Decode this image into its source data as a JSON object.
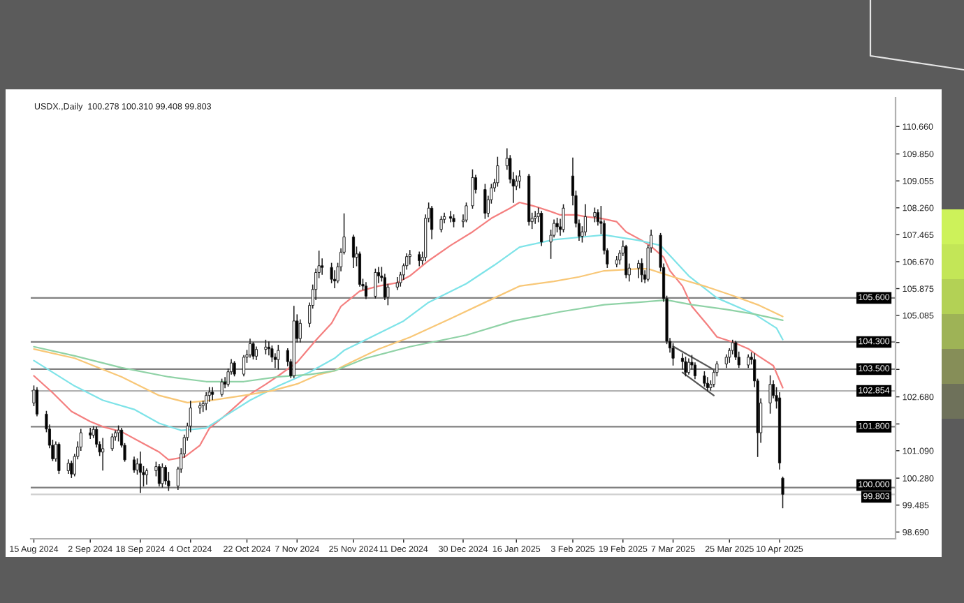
{
  "chart_data": {
    "type": "candlestick",
    "title": "USDX.,Daily  100.278 100.310 99.408 99.803",
    "x": [
      "2024-08-15",
      "2024-08-16",
      "2024-08-19",
      "2024-08-20",
      "2024-08-21",
      "2024-08-22",
      "2024-08-23",
      "2024-08-26",
      "2024-08-27",
      "2024-08-28",
      "2024-08-29",
      "2024-08-30",
      "2024-09-02",
      "2024-09-03",
      "2024-09-04",
      "2024-09-05",
      "2024-09-06",
      "2024-09-09",
      "2024-09-10",
      "2024-09-11",
      "2024-09-12",
      "2024-09-13",
      "2024-09-16",
      "2024-09-17",
      "2024-09-18",
      "2024-09-19",
      "2024-09-20",
      "2024-09-23",
      "2024-09-24",
      "2024-09-25",
      "2024-09-26",
      "2024-09-27",
      "2024-09-30",
      "2024-10-01",
      "2024-10-02",
      "2024-10-03",
      "2024-10-04",
      "2024-10-07",
      "2024-10-08",
      "2024-10-09",
      "2024-10-10",
      "2024-10-11",
      "2024-10-14",
      "2024-10-15",
      "2024-10-16",
      "2024-10-17",
      "2024-10-18",
      "2024-10-21",
      "2024-10-22",
      "2024-10-23",
      "2024-10-24",
      "2024-10-25",
      "2024-10-28",
      "2024-10-29",
      "2024-10-30",
      "2024-10-31",
      "2024-11-01",
      "2024-11-04",
      "2024-11-05",
      "2024-11-06",
      "2024-11-07",
      "2024-11-08",
      "2024-11-11",
      "2024-11-12",
      "2024-11-13",
      "2024-11-14",
      "2024-11-15",
      "2024-11-18",
      "2024-11-19",
      "2024-11-20",
      "2024-11-21",
      "2024-11-22",
      "2024-11-25",
      "2024-11-26",
      "2024-11-27",
      "2024-11-28",
      "2024-11-29",
      "2024-12-02",
      "2024-12-03",
      "2024-12-04",
      "2024-12-05",
      "2024-12-06",
      "2024-12-09",
      "2024-12-10",
      "2024-12-11",
      "2024-12-12",
      "2024-12-13",
      "2024-12-16",
      "2024-12-17",
      "2024-12-18",
      "2024-12-19",
      "2024-12-20",
      "2024-12-23",
      "2024-12-24",
      "2024-12-26",
      "2024-12-27",
      "2024-12-30",
      "2024-12-31",
      "2025-01-02",
      "2025-01-03",
      "2025-01-06",
      "2025-01-07",
      "2025-01-08",
      "2025-01-09",
      "2025-01-10",
      "2025-01-13",
      "2025-01-14",
      "2025-01-15",
      "2025-01-16",
      "2025-01-17",
      "2025-01-20",
      "2025-01-21",
      "2025-01-22",
      "2025-01-23",
      "2025-01-24",
      "2025-01-27",
      "2025-01-28",
      "2025-01-29",
      "2025-01-30",
      "2025-01-31",
      "2025-02-03",
      "2025-02-04",
      "2025-02-05",
      "2025-02-06",
      "2025-02-07",
      "2025-02-10",
      "2025-02-11",
      "2025-02-12",
      "2025-02-13",
      "2025-02-14",
      "2025-02-17",
      "2025-02-18",
      "2025-02-19",
      "2025-02-20",
      "2025-02-21",
      "2025-02-24",
      "2025-02-25",
      "2025-02-26",
      "2025-02-27",
      "2025-02-28",
      "2025-03-03",
      "2025-03-04",
      "2025-03-05",
      "2025-03-06",
      "2025-03-07",
      "2025-03-10",
      "2025-03-11",
      "2025-03-12",
      "2025-03-13",
      "2025-03-14",
      "2025-03-17",
      "2025-03-18",
      "2025-03-19",
      "2025-03-20",
      "2025-03-21",
      "2025-03-24",
      "2025-03-25",
      "2025-03-26",
      "2025-03-27",
      "2025-03-28",
      "2025-03-31",
      "2025-04-01",
      "2025-04-02",
      "2025-04-03",
      "2025-04-04",
      "2025-04-07",
      "2025-04-08",
      "2025-04-09",
      "2025-04-10",
      "2025-04-11"
    ],
    "ohlc": [
      [
        102.5,
        103.0,
        102.42,
        102.88
      ],
      [
        102.88,
        102.95,
        102.12,
        102.17
      ],
      [
        102.17,
        102.25,
        101.65,
        101.73
      ],
      [
        101.73,
        101.85,
        101.18,
        101.25
      ],
      [
        101.25,
        101.4,
        100.8,
        100.85
      ],
      [
        100.85,
        101.35,
        100.78,
        101.28
      ],
      [
        101.28,
        101.32,
        100.42,
        100.5
      ],
      [
        100.5,
        100.82,
        100.42,
        100.72
      ],
      [
        100.72,
        100.78,
        100.3,
        100.4
      ],
      [
        100.4,
        100.98,
        100.35,
        100.92
      ],
      [
        100.92,
        101.35,
        100.85,
        101.2
      ],
      [
        101.2,
        101.72,
        101.1,
        101.62
      ],
      [
        101.62,
        101.75,
        101.45,
        101.55
      ],
      [
        101.55,
        101.8,
        101.48,
        101.72
      ],
      [
        101.72,
        101.78,
        101.2,
        101.28
      ],
      [
        101.28,
        101.35,
        100.95,
        101.05
      ],
      [
        101.05,
        101.45,
        100.52,
        101.15
      ],
      [
        101.15,
        101.58,
        101.1,
        101.5
      ],
      [
        101.5,
        101.68,
        101.4,
        101.62
      ],
      [
        101.62,
        101.82,
        101.38,
        101.7
      ],
      [
        101.7,
        101.75,
        101.2,
        101.25
      ],
      [
        101.25,
        101.3,
        100.78,
        100.82
      ],
      [
        100.82,
        100.9,
        100.45,
        100.52
      ],
      [
        100.52,
        100.85,
        100.4,
        100.7
      ],
      [
        100.7,
        101.05,
        99.86,
        100.45
      ],
      [
        100.45,
        100.62,
        100.05,
        100.38
      ],
      [
        100.38,
        100.55,
        100.1,
        100.5
      ],
      [
        100.5,
        100.75,
        100.35,
        100.62
      ],
      [
        100.62,
        100.68,
        100.05,
        100.12
      ],
      [
        100.12,
        100.7,
        100.02,
        100.6
      ],
      [
        100.6,
        100.65,
        100.1,
        100.2
      ],
      [
        100.2,
        100.45,
        99.92,
        100.05
      ],
      [
        100.05,
        100.6,
        99.95,
        100.55
      ],
      [
        100.55,
        101.15,
        100.45,
        101.0
      ],
      [
        101.0,
        101.55,
        100.9,
        101.48
      ],
      [
        101.48,
        101.9,
        101.4,
        101.82
      ],
      [
        101.82,
        102.55,
        101.65,
        102.35
      ],
      [
        102.35,
        102.5,
        102.2,
        102.42
      ],
      [
        102.42,
        102.55,
        102.25,
        102.48
      ],
      [
        102.48,
        102.8,
        102.3,
        102.72
      ],
      [
        102.72,
        102.95,
        102.55,
        102.82
      ],
      [
        102.82,
        102.95,
        102.6,
        102.75
      ],
      [
        102.75,
        103.2,
        102.7,
        103.12
      ],
      [
        103.12,
        103.25,
        102.95,
        103.05
      ],
      [
        103.05,
        103.5,
        103.0,
        103.42
      ],
      [
        103.42,
        103.78,
        103.35,
        103.68
      ],
      [
        103.68,
        103.72,
        103.3,
        103.35
      ],
      [
        103.35,
        103.9,
        103.3,
        103.85
      ],
      [
        103.85,
        104.05,
        103.7,
        103.92
      ],
      [
        103.92,
        104.38,
        103.85,
        104.25
      ],
      [
        104.25,
        104.28,
        103.8,
        103.88
      ],
      [
        103.88,
        104.15,
        103.78,
        104.08
      ],
      [
        104.08,
        104.35,
        103.95,
        104.15
      ],
      [
        104.15,
        104.3,
        103.92,
        104.1
      ],
      [
        104.1,
        104.18,
        103.72,
        103.85
      ],
      [
        103.85,
        103.95,
        103.55,
        103.78
      ],
      [
        103.78,
        104.2,
        103.5,
        104.05
      ],
      [
        104.05,
        104.1,
        103.6,
        103.72
      ],
      [
        103.72,
        103.78,
        103.25,
        103.3
      ],
      [
        103.3,
        105.35,
        103.25,
        104.92
      ],
      [
        104.92,
        105.1,
        104.3,
        104.4
      ],
      [
        104.4,
        104.95,
        104.3,
        104.85
      ],
      [
        104.85,
        105.45,
        104.75,
        105.38
      ],
      [
        105.38,
        105.98,
        105.3,
        105.85
      ],
      [
        105.85,
        106.45,
        105.55,
        106.35
      ],
      [
        106.35,
        106.98,
        106.2,
        106.55
      ],
      [
        106.55,
        106.75,
        106.3,
        106.5
      ],
      [
        106.5,
        106.62,
        106.05,
        106.15
      ],
      [
        106.15,
        106.4,
        105.9,
        106.1
      ],
      [
        106.1,
        106.62,
        106.05,
        106.52
      ],
      [
        106.52,
        107.05,
        106.4,
        106.95
      ],
      [
        106.95,
        108.08,
        106.9,
        107.4
      ],
      [
        107.4,
        107.45,
        106.5,
        106.8
      ],
      [
        106.8,
        107.1,
        106.55,
        106.9
      ],
      [
        106.9,
        106.95,
        105.95,
        106.0
      ],
      [
        106.0,
        106.15,
        105.85,
        105.95
      ],
      [
        105.95,
        106.05,
        105.58,
        105.65
      ],
      [
        105.65,
        106.45,
        105.6,
        106.35
      ],
      [
        106.35,
        106.5,
        106.05,
        106.25
      ],
      [
        106.25,
        106.5,
        106.1,
        106.2
      ],
      [
        106.2,
        106.3,
        105.55,
        105.62
      ],
      [
        105.62,
        106.0,
        105.4,
        105.92
      ],
      [
        105.92,
        106.2,
        105.85,
        106.05
      ],
      [
        106.05,
        106.35,
        105.95,
        106.28
      ],
      [
        106.28,
        106.6,
        106.15,
        106.55
      ],
      [
        106.55,
        106.9,
        106.45,
        106.82
      ],
      [
        106.82,
        107.0,
        106.6,
        106.88
      ],
      [
        106.88,
        106.95,
        106.55,
        106.7
      ],
      [
        106.7,
        106.95,
        106.6,
        106.8
      ],
      [
        106.8,
        108.05,
        106.7,
        107.95
      ],
      [
        107.95,
        108.4,
        107.85,
        108.25
      ],
      [
        108.25,
        108.3,
        107.35,
        107.62
      ],
      [
        107.62,
        108.0,
        107.55,
        107.92
      ],
      [
        107.92,
        108.1,
        107.82,
        108.0
      ],
      [
        108.0,
        108.15,
        107.85,
        107.95
      ],
      [
        107.95,
        108.05,
        107.7,
        107.85
      ],
      [
        107.85,
        108.05,
        107.7,
        107.9
      ],
      [
        107.9,
        108.4,
        107.85,
        108.32
      ],
      [
        108.32,
        109.38,
        108.25,
        109.15
      ],
      [
        109.15,
        109.22,
        108.7,
        108.8
      ],
      [
        108.8,
        108.95,
        107.95,
        108.1
      ],
      [
        108.1,
        108.6,
        108.0,
        108.5
      ],
      [
        108.5,
        108.95,
        108.4,
        108.85
      ],
      [
        108.85,
        109.1,
        108.75,
        109.0
      ],
      [
        109.0,
        109.75,
        108.9,
        109.5
      ],
      [
        109.5,
        110.0,
        109.4,
        109.72
      ],
      [
        109.72,
        109.8,
        109.0,
        109.1
      ],
      [
        109.1,
        109.3,
        108.42,
        108.9
      ],
      [
        108.9,
        109.2,
        108.8,
        109.05
      ],
      [
        109.05,
        109.35,
        108.85,
        109.2
      ],
      [
        109.2,
        109.25,
        107.75,
        107.85
      ],
      [
        107.85,
        108.1,
        107.65,
        107.95
      ],
      [
        107.95,
        108.15,
        107.8,
        108.0
      ],
      [
        108.0,
        108.25,
        107.85,
        108.1
      ],
      [
        108.1,
        108.15,
        107.15,
        107.25
      ],
      [
        107.25,
        107.6,
        106.77,
        107.45
      ],
      [
        107.45,
        107.9,
        107.4,
        107.8
      ],
      [
        107.8,
        107.95,
        107.55,
        107.7
      ],
      [
        107.7,
        107.92,
        107.45,
        107.62
      ],
      [
        107.62,
        108.35,
        107.55,
        108.25
      ],
      [
        109.2,
        109.73,
        108.35,
        108.62
      ],
      [
        108.62,
        108.75,
        107.7,
        107.8
      ],
      [
        107.8,
        107.9,
        107.3,
        107.42
      ],
      [
        107.42,
        107.7,
        107.25,
        107.55
      ],
      [
        107.55,
        108.35,
        107.45,
        108.0
      ],
      [
        108.0,
        108.25,
        107.85,
        108.12
      ],
      [
        108.12,
        108.2,
        107.75,
        107.85
      ],
      [
        107.85,
        108.3,
        107.5,
        107.8
      ],
      [
        107.8,
        107.88,
        106.9,
        107.0
      ],
      [
        107.0,
        107.05,
        106.5,
        106.6
      ],
      [
        106.6,
        106.82,
        106.52,
        106.72
      ],
      [
        106.72,
        107.0,
        106.6,
        106.92
      ],
      [
        106.92,
        107.28,
        106.85,
        107.12
      ],
      [
        107.12,
        107.15,
        106.2,
        106.28
      ],
      [
        106.28,
        106.6,
        106.1,
        106.48
      ],
      [
        106.48,
        106.7,
        106.2,
        106.62
      ],
      [
        106.62,
        106.75,
        106.08,
        106.28
      ],
      [
        106.28,
        106.4,
        106.05,
        106.15
      ],
      [
        106.15,
        107.15,
        106.1,
        107.08
      ],
      [
        107.08,
        107.6,
        106.95,
        107.45
      ],
      [
        107.45,
        107.5,
        106.4,
        106.5
      ],
      [
        106.5,
        106.6,
        105.5,
        105.58
      ],
      [
        105.58,
        105.65,
        104.25,
        104.32
      ],
      [
        104.32,
        104.4,
        104.0,
        104.12
      ],
      [
        104.12,
        104.25,
        103.62,
        103.82
      ],
      [
        103.82,
        103.95,
        103.5,
        103.72
      ],
      [
        103.72,
        103.85,
        103.3,
        103.4
      ],
      [
        103.4,
        103.8,
        103.35,
        103.7
      ],
      [
        103.7,
        103.9,
        103.5,
        103.62
      ],
      [
        103.62,
        103.68,
        103.22,
        103.3
      ],
      [
        103.3,
        103.42,
        103.0,
        103.08
      ],
      [
        103.08,
        103.25,
        102.86,
        102.95
      ],
      [
        102.95,
        103.15,
        102.88,
        103.05
      ],
      [
        103.05,
        103.45,
        102.98,
        103.4
      ],
      [
        103.4,
        103.72,
        103.3,
        103.65
      ],
      [
        103.65,
        103.92,
        103.55,
        103.85
      ],
      [
        103.85,
        104.1,
        103.7,
        104.05
      ],
      [
        104.05,
        104.35,
        103.95,
        104.28
      ],
      [
        104.28,
        104.32,
        103.78,
        103.85
      ],
      [
        103.85,
        104.0,
        103.55,
        103.62
      ],
      [
        103.62,
        103.92,
        103.55,
        103.85
      ],
      [
        103.85,
        103.98,
        103.65,
        103.78
      ],
      [
        103.78,
        103.95,
        102.98,
        103.15
      ],
      [
        103.15,
        103.2,
        100.92,
        101.62
      ],
      [
        101.62,
        102.62,
        101.34,
        102.5
      ],
      [
        102.5,
        103.3,
        102.2,
        103.05
      ],
      [
        103.05,
        103.15,
        102.65,
        102.72
      ],
      [
        102.72,
        102.95,
        102.35,
        102.55
      ],
      [
        102.65,
        102.8,
        100.55,
        100.73
      ],
      [
        100.278,
        100.31,
        99.408,
        99.803
      ]
    ],
    "colors": [
      "#ffffff",
      "#000000",
      "#000000",
      "#000000",
      "#000000",
      "#ffffff",
      "#000000",
      "#ffffff",
      "#000000",
      "#ffffff",
      "#ffffff",
      "#ffffff",
      "#000000",
      "#ffffff",
      "#000000",
      "#000000",
      "#ffffff",
      "#ffffff",
      "#ffffff",
      "#ffffff",
      "#000000",
      "#000000",
      "#000000",
      "#ffffff",
      "#000000",
      "#000000",
      "#ffffff",
      "#ffffff",
      "#000000",
      "#ffffff",
      "#000000",
      "#000000",
      "#ffffff",
      "#ffffff",
      "#ffffff",
      "#ffffff",
      "#ffffff",
      "#ffffff",
      "#ffffff",
      "#ffffff",
      "#ffffff",
      "#000000",
      "#ffffff",
      "#000000",
      "#ffffff",
      "#ffffff",
      "#000000",
      "#ffffff",
      "#ffffff",
      "#ffffff",
      "#000000",
      "#ffffff",
      "#ffffff",
      "#000000",
      "#000000",
      "#000000",
      "#ffffff",
      "#000000",
      "#000000",
      "#ffffff",
      "#000000",
      "#ffffff",
      "#ffffff",
      "#ffffff",
      "#ffffff",
      "#ffffff",
      "#000000",
      "#000000",
      "#000000",
      "#ffffff",
      "#ffffff",
      "#ffffff",
      "#000000",
      "#ffffff",
      "#000000",
      "#000000",
      "#000000",
      "#ffffff",
      "#000000",
      "#000000",
      "#000000",
      "#ffffff",
      "#ffffff",
      "#ffffff",
      "#ffffff",
      "#ffffff",
      "#ffffff",
      "#000000",
      "#ffffff",
      "#ffffff",
      "#ffffff",
      "#000000",
      "#ffffff",
      "#ffffff",
      "#000000",
      "#000000",
      "#ffffff",
      "#ffffff",
      "#ffffff",
      "#000000",
      "#000000",
      "#ffffff",
      "#ffffff",
      "#ffffff",
      "#ffffff",
      "#ffffff",
      "#000000",
      "#000000",
      "#ffffff",
      "#ffffff",
      "#000000",
      "#ffffff",
      "#ffffff",
      "#ffffff",
      "#000000",
      "#ffffff",
      "#ffffff",
      "#000000",
      "#000000",
      "#ffffff",
      "#000000",
      "#000000",
      "#000000",
      "#ffffff",
      "#ffffff",
      "#ffffff",
      "#000000",
      "#000000",
      "#000000",
      "#000000",
      "#ffffff",
      "#ffffff",
      "#ffffff",
      "#000000",
      "#ffffff",
      "#ffffff",
      "#000000",
      "#000000",
      "#ffffff",
      "#ffffff",
      "#000000",
      "#000000",
      "#000000",
      "#000000",
      "#000000",
      "#000000",
      "#000000",
      "#ffffff",
      "#000000",
      "#000000",
      "#000000",
      "#000000",
      "#ffffff",
      "#ffffff",
      "#ffffff",
      "#ffffff",
      "#ffffff",
      "#ffffff",
      "#000000",
      "#000000",
      "#ffffff",
      "#000000",
      "#000000",
      "#000000",
      "#ffffff",
      "#ffffff",
      "#000000",
      "#000000",
      "#000000",
      "#000000"
    ],
    "color": "#1a1a1a",
    "series": [
      {
        "type": "line",
        "color": "#f47f7f",
        "x": [
          "2024-08-15",
          "2024-08-21",
          "2024-08-27",
          "2024-09-02",
          "2024-09-06",
          "2024-09-12",
          "2024-09-18",
          "2024-09-24",
          "2024-09-27",
          "2024-10-02",
          "2024-10-07",
          "2024-10-10",
          "2024-10-16",
          "2024-10-22",
          "2024-10-28",
          "2024-11-01",
          "2024-11-07",
          "2024-11-13",
          "2024-11-18",
          "2024-11-21",
          "2024-11-27",
          "2024-12-03",
          "2024-12-09",
          "2024-12-13",
          "2024-12-19",
          "2024-12-26",
          "2025-01-02",
          "2025-01-08",
          "2025-01-14",
          "2025-01-17",
          "2025-01-22",
          "2025-01-27",
          "2025-01-30",
          "2025-02-04",
          "2025-02-07",
          "2025-02-12",
          "2025-02-17",
          "2025-02-20",
          "2025-02-25",
          "2025-02-28",
          "2025-03-04",
          "2025-03-06",
          "2025-03-10",
          "2025-03-13",
          "2025-03-18",
          "2025-03-21",
          "2025-03-26",
          "2025-03-31",
          "2025-04-03",
          "2025-04-08",
          "2025-04-11"
        ],
        "values": [
          103.3,
          102.8,
          102.25,
          101.95,
          101.8,
          101.65,
          101.35,
          101.05,
          100.82,
          100.9,
          101.25,
          101.75,
          102.2,
          102.7,
          103.05,
          103.3,
          103.7,
          104.35,
          104.85,
          105.35,
          105.8,
          105.95,
          106.05,
          106.25,
          106.7,
          107.15,
          107.55,
          107.95,
          108.25,
          108.42,
          108.3,
          108.15,
          108.05,
          108.05,
          108.0,
          107.95,
          107.85,
          107.55,
          107.3,
          107.12,
          106.8,
          106.4,
          105.95,
          105.35,
          104.8,
          104.45,
          104.3,
          104.1,
          103.9,
          103.6,
          102.95
        ]
      },
      {
        "type": "line",
        "color": "#7ee3e8",
        "x": [
          "2024-08-15",
          "2024-08-28",
          "2024-09-06",
          "2024-09-16",
          "2024-09-24",
          "2024-10-01",
          "2024-10-09",
          "2024-10-16",
          "2024-10-23",
          "2024-11-01",
          "2024-11-11",
          "2024-11-19",
          "2024-11-22",
          "2024-12-03",
          "2024-12-11",
          "2024-12-19",
          "2024-12-31",
          "2025-01-09",
          "2025-01-17",
          "2025-01-28",
          "2025-02-05",
          "2025-02-13",
          "2025-02-24",
          "2025-03-03",
          "2025-03-07",
          "2025-03-12",
          "2025-03-21",
          "2025-04-02",
          "2025-04-09",
          "2025-04-11"
        ],
        "values": [
          103.75,
          103.0,
          102.58,
          102.31,
          101.9,
          101.69,
          101.76,
          102.17,
          102.58,
          103.0,
          103.41,
          103.82,
          104.05,
          104.55,
          104.92,
          105.47,
          106.02,
          106.57,
          107.1,
          107.32,
          107.39,
          107.46,
          107.3,
          107.15,
          106.75,
          106.25,
          105.6,
          105.12,
          104.71,
          104.37
        ]
      },
      {
        "type": "line",
        "color": "#f8c777",
        "x": [
          "2024-08-15",
          "2024-08-28",
          "2024-09-12",
          "2024-09-24",
          "2024-10-03",
          "2024-10-11",
          "2024-10-21",
          "2024-10-30",
          "2024-11-07",
          "2024-11-14",
          "2024-11-19",
          "2024-11-22",
          "2024-12-03",
          "2024-12-13",
          "2024-12-26",
          "2025-01-09",
          "2025-01-17",
          "2025-01-28",
          "2025-02-05",
          "2025-02-13",
          "2025-02-24",
          "2025-02-27",
          "2025-03-07",
          "2025-03-17",
          "2025-03-26",
          "2025-04-03",
          "2025-04-11"
        ],
        "values": [
          104.09,
          103.82,
          103.27,
          102.72,
          102.51,
          102.58,
          102.72,
          102.86,
          103.06,
          103.34,
          103.45,
          103.6,
          104.09,
          104.44,
          104.99,
          105.6,
          105.95,
          106.09,
          106.22,
          106.4,
          106.46,
          106.46,
          106.22,
          105.95,
          105.67,
          105.4,
          105.05
        ]
      },
      {
        "type": "line",
        "color": "#8fd2a6",
        "x": [
          "2024-08-15",
          "2024-08-28",
          "2024-09-12",
          "2024-09-27",
          "2024-10-09",
          "2024-10-21",
          "2024-11-01",
          "2024-11-11",
          "2024-11-19",
          "2024-11-29",
          "2024-12-13",
          "2024-12-31",
          "2025-01-15",
          "2025-01-30",
          "2025-02-13",
          "2025-02-24",
          "2025-03-05",
          "2025-03-13",
          "2025-03-24",
          "2025-04-02",
          "2025-04-11"
        ],
        "values": [
          104.16,
          103.89,
          103.54,
          103.27,
          103.13,
          103.13,
          103.27,
          103.34,
          103.45,
          103.82,
          104.16,
          104.5,
          104.92,
          105.19,
          105.4,
          105.47,
          105.54,
          105.4,
          105.26,
          105.12,
          104.94
        ]
      },
      {
        "type": "line",
        "color": "#555555",
        "x": [
          "2025-03-07",
          "2025-03-20"
        ],
        "values": [
          104.17,
          103.48
        ]
      },
      {
        "type": "line",
        "color": "#555555",
        "x": [
          "2025-03-10",
          "2025-03-20"
        ],
        "values": [
          103.4,
          102.72
        ]
      }
    ],
    "xlim": [
      "2024-08-14",
      "2025-05-17"
    ],
    "xticks": [
      {
        "value": "2024-08-15",
        "label": "15 Aug 2024"
      },
      {
        "value": "2024-09-02",
        "label": "2 Sep 2024"
      },
      {
        "value": "2024-09-18",
        "label": "18 Sep 2024"
      },
      {
        "value": "2024-10-04",
        "label": "4 Oct 2024"
      },
      {
        "value": "2024-10-22",
        "label": "22 Oct 2024"
      },
      {
        "value": "2024-11-07",
        "label": "7 Nov 2024"
      },
      {
        "value": "2024-11-25",
        "label": "25 Nov 2024"
      },
      {
        "value": "2024-12-11",
        "label": "11 Dec 2024"
      },
      {
        "value": "2024-12-30",
        "label": "30 Dec 2024"
      },
      {
        "value": "2025-01-16",
        "label": "16 Jan 2025"
      },
      {
        "value": "2025-02-03",
        "label": "3 Feb 2025"
      },
      {
        "value": "2025-02-19",
        "label": "19 Feb 2025"
      },
      {
        "value": "2025-03-07",
        "label": "7 Mar 2025"
      },
      {
        "value": "2025-03-25",
        "label": "25 Mar 2025"
      },
      {
        "value": "2025-04-10",
        "label": "10 Apr 2025"
      }
    ],
    "ylim": [
      98.49,
      111.51
    ],
    "yticks": [
      {
        "value": 110.66,
        "label": "110.660"
      },
      {
        "value": 109.85,
        "label": "109.850"
      },
      {
        "value": 109.055,
        "label": "109.055"
      },
      {
        "value": 108.26,
        "label": "108.260"
      },
      {
        "value": 107.465,
        "label": "107.465"
      },
      {
        "value": 106.67,
        "label": "106.670"
      },
      {
        "value": 105.875,
        "label": "105.875"
      },
      {
        "value": 105.085,
        "label": "105.085"
      },
      {
        "value": 104.285,
        "label": null
      },
      {
        "value": 103.49,
        "label": null
      },
      {
        "value": 102.68,
        "label": "102.680"
      },
      {
        "value": 101.88,
        "label": null
      },
      {
        "value": 101.09,
        "label": "101.090"
      },
      {
        "value": 100.28,
        "label": "100.280"
      },
      {
        "value": 99.485,
        "label": "99.485"
      },
      {
        "value": 98.69,
        "label": "98.690"
      }
    ],
    "ref_lines": [
      {
        "axis": "y",
        "value": 105.6,
        "label": "105.600",
        "color": "#808080"
      },
      {
        "axis": "y",
        "value": 104.3,
        "label": "104.300",
        "color": "#808080"
      },
      {
        "axis": "y",
        "value": 103.5,
        "label": "103.500",
        "color": "#808080"
      },
      {
        "axis": "y",
        "value": 102.854,
        "label": "102.854",
        "color": "#b4b4b4"
      },
      {
        "axis": "y",
        "value": 101.8,
        "label": "101.800",
        "color": "#808080"
      },
      {
        "axis": "y",
        "value": 100.0,
        "label": "100.000",
        "color": "#808080"
      },
      {
        "axis": "y",
        "value": 99.803,
        "label": "99.803",
        "color": "#d0d0d0"
      }
    ]
  }
}
